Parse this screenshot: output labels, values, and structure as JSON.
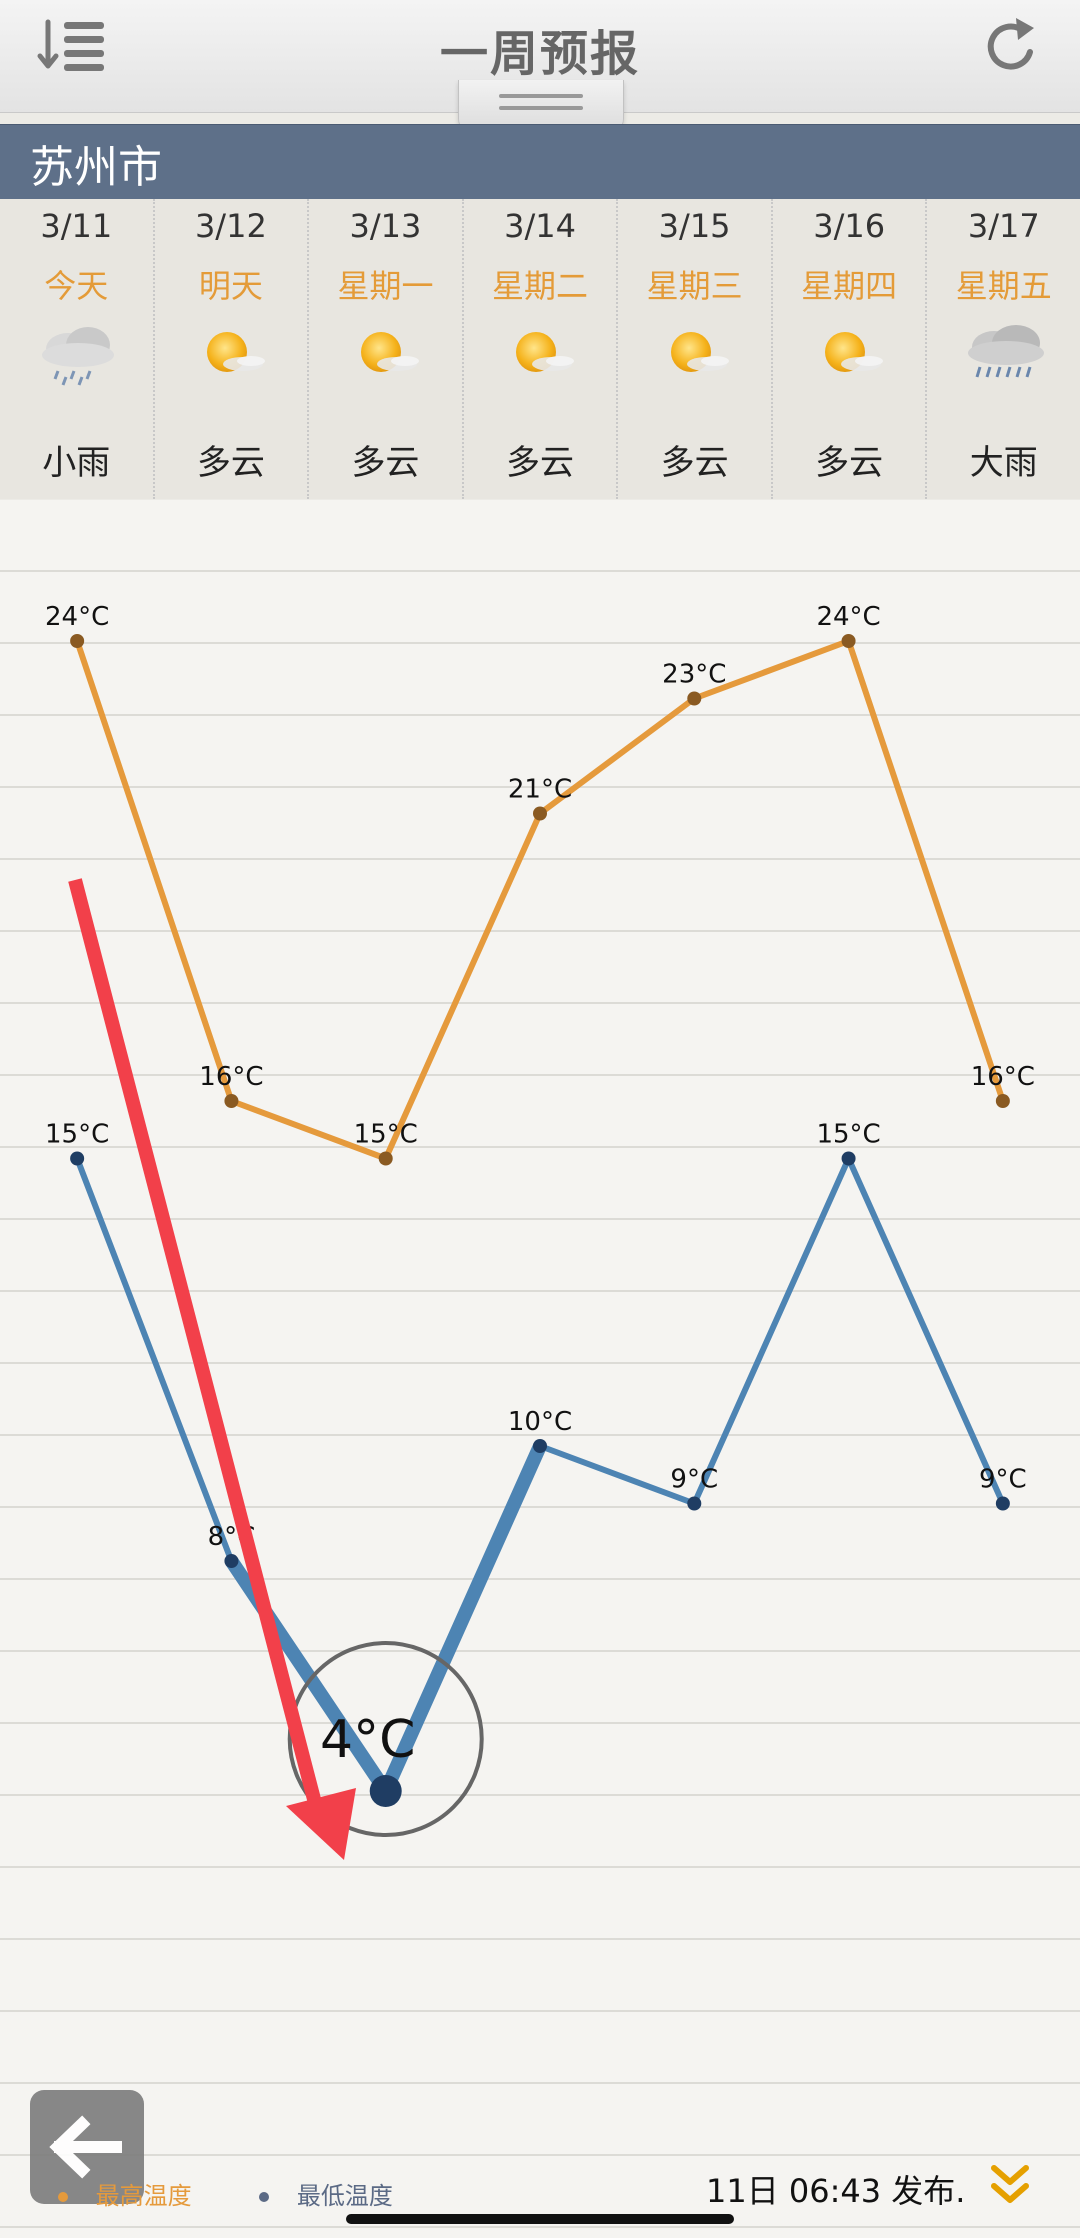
{
  "header": {
    "title": "一周预报",
    "menu_icon": "menu-list-icon",
    "refresh_icon": "refresh-icon"
  },
  "city": {
    "name": "苏州市"
  },
  "forecast": [
    {
      "date": "3/11",
      "label": "今天",
      "condition": "小雨",
      "icon": "light-rain-icon"
    },
    {
      "date": "3/12",
      "label": "明天",
      "condition": "多云",
      "icon": "partly-cloudy-icon"
    },
    {
      "date": "3/13",
      "label": "星期一",
      "condition": "多云",
      "icon": "partly-cloudy-icon"
    },
    {
      "date": "3/14",
      "label": "星期二",
      "condition": "多云",
      "icon": "partly-cloudy-icon"
    },
    {
      "date": "3/15",
      "label": "星期三",
      "condition": "多云",
      "icon": "partly-cloudy-icon"
    },
    {
      "date": "3/16",
      "label": "星期四",
      "condition": "多云",
      "icon": "partly-cloudy-icon"
    },
    {
      "date": "3/17",
      "label": "星期五",
      "condition": "大雨",
      "icon": "heavy-rain-icon"
    }
  ],
  "chart_data": {
    "type": "line",
    "categories": [
      "3/11",
      "3/12",
      "3/13",
      "3/14",
      "3/15",
      "3/16",
      "3/17"
    ],
    "series": [
      {
        "name": "最高温度",
        "values": [
          24,
          16,
          15,
          21,
          23,
          24,
          16
        ],
        "labels": [
          "24°C",
          "16°C",
          "15°C",
          "21°C",
          "23°C",
          "24°C",
          "16°C"
        ],
        "color": "#e59a3c"
      },
      {
        "name": "最低温度",
        "values": [
          15,
          8,
          4,
          10,
          9,
          15,
          9
        ],
        "labels": [
          "15°C",
          "8°C",
          "4°C",
          "10°C",
          "9°C",
          "15°C",
          "9°C"
        ],
        "color": "#4d84b3"
      }
    ],
    "ylim": [
      4,
      24
    ],
    "grid": true,
    "legend": "bottom-left",
    "highlight": {
      "series": 1,
      "index": 2,
      "label": "4°C"
    },
    "annotation_arrow_color": "#f2404a"
  },
  "footer": {
    "back_icon": "back-arrow-icon",
    "published": "11日 06:43 发布.",
    "more_icon": "double-chevron-down-icon"
  }
}
